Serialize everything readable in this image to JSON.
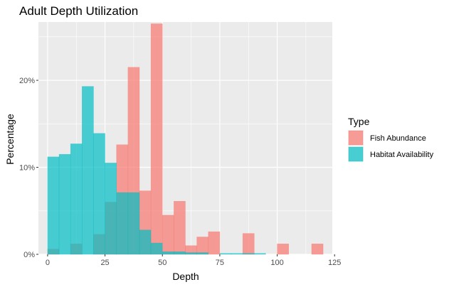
{
  "chart_data": {
    "type": "histogram",
    "title": "Adult Depth Utilization",
    "xlabel": "Depth",
    "ylabel": "Percentage",
    "xlim": [
      -4,
      124
    ],
    "ylim": [
      0,
      0.267
    ],
    "x_ticks": [
      0,
      25,
      50,
      75,
      100,
      125
    ],
    "x_tick_labels": [
      "0",
      "25",
      "50",
      "75",
      "100",
      "125"
    ],
    "y_ticks": [
      0,
      0.1,
      0.2
    ],
    "y_tick_labels": [
      "0%",
      "10%",
      "20%"
    ],
    "bin_width": 5,
    "bin_centers": [
      2.5,
      7.5,
      12.5,
      17.5,
      22.5,
      27.5,
      32.5,
      37.5,
      42.5,
      47.5,
      52.5,
      57.5,
      62.5,
      67.5,
      72.5,
      77.5,
      82.5,
      87.5,
      92.5,
      97.5,
      102.5,
      107.5,
      112.5,
      117.5
    ],
    "legend": {
      "title": "Type",
      "position": "right"
    },
    "series": [
      {
        "name": "Fish Abundance",
        "color": "#F8766D",
        "values": [
          0.006,
          0.0,
          0.012,
          0.0,
          0.023,
          0.06,
          0.126,
          0.215,
          0.073,
          0.265,
          0.045,
          0.061,
          0.01,
          0.02,
          0.026,
          0.0,
          0.0,
          0.024,
          0.0,
          0.0,
          0.012,
          0.0,
          0.0,
          0.012
        ]
      },
      {
        "name": "Habitat Availability",
        "color": "#00BFC4",
        "values": [
          0.112,
          0.115,
          0.127,
          0.193,
          0.139,
          0.105,
          0.071,
          0.071,
          0.028,
          0.013,
          0.003,
          0.003,
          0.002,
          0.002,
          0.0,
          0.001,
          0.001,
          0.001,
          0.001,
          0.0,
          0.0,
          0.0,
          0.0,
          0.0
        ]
      }
    ],
    "grid": true,
    "panel_background": "#EBEBEB"
  }
}
